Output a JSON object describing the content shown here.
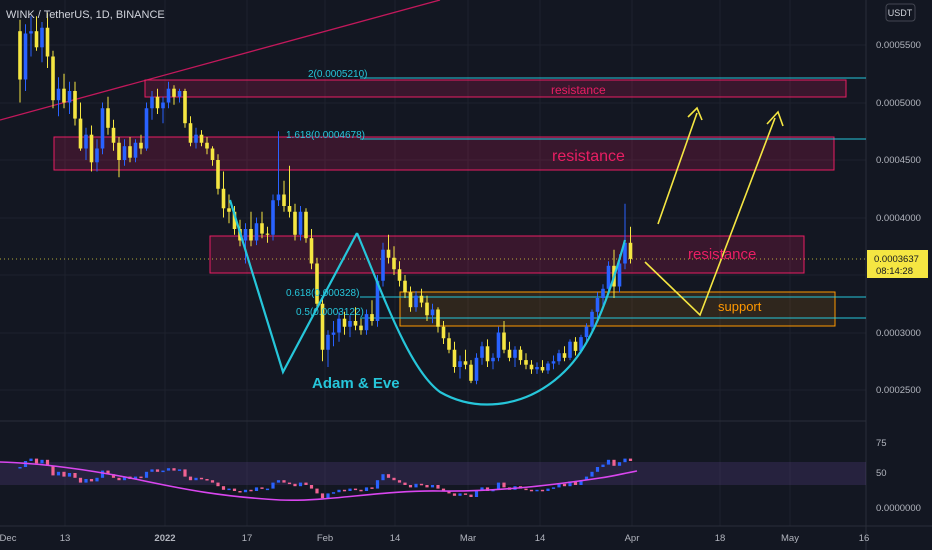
{
  "header": {
    "symbol_line": "WINK / TetherUS, 1D, BINANCE"
  },
  "currency_button": "USDT",
  "price_axis": {
    "ticks": [
      "0.0005500",
      "0.0005000",
      "0.0004500",
      "0.0004000",
      "0.0003000",
      "0.0002500"
    ]
  },
  "last_price": {
    "value": "0.0003637",
    "countdown": "08:14:28"
  },
  "rsi_axis": {
    "ticks": [
      "75",
      "50",
      "0.0000000"
    ]
  },
  "time_axis": {
    "ticks": [
      "Dec",
      "13",
      "2022",
      "17",
      "Feb",
      "14",
      "Mar",
      "14",
      "Apr",
      "18",
      "May",
      "16"
    ]
  },
  "annotations": {
    "fib_2": "2(0.0005210)",
    "fib_1618": "1.618(0.0004678)",
    "fib_0618": "0.618(0.000328)",
    "fib_05": "0.5(0.0003122)",
    "resistance_top": "resistance",
    "resistance_mid": "resistance",
    "resistance_low": "resistance",
    "support": "support",
    "pattern": "Adam & Eve"
  },
  "colors": {
    "background": "#131722",
    "bull": "#2962ff",
    "bear": "#f5e642",
    "pink_zone": "#e91e63",
    "orange_zone": "#ff9800",
    "cyan": "#26c6da",
    "yellow_arrow": "#f5e642",
    "rsi_line": "#d946ef",
    "text": "#b2b5be"
  },
  "chart_data": [
    {
      "type": "candlestick",
      "title": "WINK / TetherUS, 1D, BINANCE",
      "y_scale": "linear",
      "ylim": [
        0.00023,
        0.00058
      ],
      "last_price": 0.0003637,
      "ohlc": [
        [
          0.000562,
          0.000572,
          0.0005,
          0.00052
        ],
        [
          0.00052,
          0.000568,
          0.00051,
          0.00056
        ],
        [
          0.00056,
          0.000575,
          0.00054,
          0.000562
        ],
        [
          0.000562,
          0.000575,
          0.000545,
          0.000548
        ],
        [
          0.000548,
          0.00057,
          0.000535,
          0.000565
        ],
        [
          0.000565,
          0.000578,
          0.00053,
          0.00054
        ],
        [
          0.00054,
          0.000545,
          0.000495,
          0.000502
        ],
        [
          0.000502,
          0.000522,
          0.000488,
          0.000512
        ],
        [
          0.000512,
          0.000525,
          0.000495,
          0.0005
        ],
        [
          0.0005,
          0.000518,
          0.00049,
          0.00051
        ],
        [
          0.00051,
          0.000518,
          0.00048,
          0.000486
        ],
        [
          0.000486,
          0.0005,
          0.000458,
          0.00046
        ],
        [
          0.00046,
          0.000478,
          0.00045,
          0.000472
        ],
        [
          0.000472,
          0.00048,
          0.00044,
          0.000448
        ],
        [
          0.000448,
          0.000468,
          0.00044,
          0.00046
        ],
        [
          0.00046,
          0.0005,
          0.000455,
          0.000495
        ],
        [
          0.000495,
          0.000505,
          0.000472,
          0.000478
        ],
        [
          0.000478,
          0.000485,
          0.000458,
          0.000465
        ],
        [
          0.000465,
          0.00047,
          0.000435,
          0.00045
        ],
        [
          0.00045,
          0.000468,
          0.000445,
          0.000462
        ],
        [
          0.000462,
          0.00047,
          0.000448,
          0.000452
        ],
        [
          0.000452,
          0.000468,
          0.000448,
          0.000465
        ],
        [
          0.000465,
          0.000472,
          0.000455,
          0.00046
        ],
        [
          0.00046,
          0.0005,
          0.000458,
          0.000495
        ],
        [
          0.000495,
          0.00051,
          0.000485,
          0.000505
        ],
        [
          0.000505,
          0.000512,
          0.00049,
          0.000495
        ],
        [
          0.000495,
          0.000505,
          0.000482,
          0.0005
        ],
        [
          0.0005,
          0.000518,
          0.000495,
          0.000512
        ],
        [
          0.000512,
          0.000515,
          0.000498,
          0.000505
        ],
        [
          0.000505,
          0.000512,
          0.0005,
          0.00051
        ],
        [
          0.00051,
          0.000512,
          0.000478,
          0.000482
        ],
        [
          0.000482,
          0.000488,
          0.000462,
          0.000465
        ],
        [
          0.000465,
          0.000478,
          0.00046,
          0.000472
        ],
        [
          0.000472,
          0.000476,
          0.000462,
          0.000465
        ],
        [
          0.000465,
          0.00047,
          0.000455,
          0.00046
        ],
        [
          0.00046,
          0.000462,
          0.000445,
          0.00045
        ],
        [
          0.00045,
          0.000455,
          0.00042,
          0.000425
        ],
        [
          0.000425,
          0.00044,
          0.0004,
          0.000408
        ],
        [
          0.000408,
          0.00042,
          0.000395,
          0.000405
        ],
        [
          0.000405,
          0.00041,
          0.000385,
          0.00039
        ],
        [
          0.00039,
          0.000398,
          0.000375,
          0.00038
        ],
        [
          0.00038,
          0.000395,
          0.00036,
          0.00039
        ],
        [
          0.00039,
          0.000405,
          0.000375,
          0.00038
        ],
        [
          0.00038,
          0.0004,
          0.000376,
          0.000395
        ],
        [
          0.000395,
          0.000405,
          0.000382,
          0.000386
        ],
        [
          0.000386,
          0.000392,
          0.000378,
          0.000385
        ],
        [
          0.000385,
          0.00042,
          0.00038,
          0.000415
        ],
        [
          0.000415,
          0.000475,
          0.00041,
          0.00042
        ],
        [
          0.00042,
          0.000432,
          0.000405,
          0.00041
        ],
        [
          0.00041,
          0.000445,
          0.0004,
          0.000405
        ],
        [
          0.000405,
          0.000412,
          0.00038,
          0.000385
        ],
        [
          0.000385,
          0.00041,
          0.00038,
          0.000405
        ],
        [
          0.000405,
          0.000408,
          0.000378,
          0.000382
        ],
        [
          0.000382,
          0.00039,
          0.000355,
          0.00036
        ],
        [
          0.00036,
          0.000365,
          0.00032,
          0.000325
        ],
        [
          0.000325,
          0.00033,
          0.000275,
          0.000285
        ],
        [
          0.000285,
          0.000302,
          0.00027,
          0.000298
        ],
        [
          0.000298,
          0.00031,
          0.000288,
          0.0003
        ],
        [
          0.0003,
          0.000318,
          0.000292,
          0.000312
        ],
        [
          0.000312,
          0.000318,
          0.000298,
          0.000305
        ],
        [
          0.000305,
          0.000315,
          0.000296,
          0.00031
        ],
        [
          0.00031,
          0.000322,
          0.000302,
          0.000306
        ],
        [
          0.000306,
          0.000312,
          0.000298,
          0.000302
        ],
        [
          0.000302,
          0.00032,
          0.000298,
          0.000316
        ],
        [
          0.000316,
          0.000328,
          0.000306,
          0.00031
        ],
        [
          0.00031,
          0.00035,
          0.000305,
          0.000345
        ],
        [
          0.000345,
          0.000378,
          0.00034,
          0.000372
        ],
        [
          0.000372,
          0.000385,
          0.00036,
          0.000365
        ],
        [
          0.000365,
          0.000375,
          0.00035,
          0.000355
        ],
        [
          0.000355,
          0.000362,
          0.00034,
          0.000345
        ],
        [
          0.000345,
          0.00035,
          0.00033,
          0.000335
        ],
        [
          0.000335,
          0.00034,
          0.000318,
          0.000322
        ],
        [
          0.000322,
          0.000336,
          0.000318,
          0.000332
        ],
        [
          0.000332,
          0.000338,
          0.000322,
          0.000326
        ],
        [
          0.000326,
          0.000332,
          0.00031,
          0.000315
        ],
        [
          0.000315,
          0.000325,
          0.000308,
          0.00032
        ],
        [
          0.00032,
          0.000322,
          0.0003,
          0.000305
        ],
        [
          0.000305,
          0.00031,
          0.00029,
          0.000295
        ],
        [
          0.000295,
          0.0003,
          0.000282,
          0.000285
        ],
        [
          0.000285,
          0.000292,
          0.000265,
          0.00027
        ],
        [
          0.00027,
          0.00028,
          0.00026,
          0.000275
        ],
        [
          0.000275,
          0.000285,
          0.000268,
          0.000272
        ],
        [
          0.000272,
          0.000276,
          0.000256,
          0.000258
        ],
        [
          0.000258,
          0.000282,
          0.000255,
          0.000278
        ],
        [
          0.000278,
          0.000292,
          0.000272,
          0.000288
        ],
        [
          0.000288,
          0.000294,
          0.00027,
          0.000275
        ],
        [
          0.000275,
          0.000282,
          0.000268,
          0.000278
        ],
        [
          0.000278,
          0.000305,
          0.000275,
          0.0003
        ],
        [
          0.0003,
          0.00031,
          0.000282,
          0.000285
        ],
        [
          0.000285,
          0.000292,
          0.000275,
          0.000278
        ],
        [
          0.000278,
          0.000288,
          0.00027,
          0.000285
        ],
        [
          0.000285,
          0.000288,
          0.000272,
          0.000276
        ],
        [
          0.000276,
          0.000282,
          0.000268,
          0.000272
        ],
        [
          0.000272,
          0.000276,
          0.000264,
          0.000268
        ],
        [
          0.000268,
          0.000274,
          0.000264,
          0.00027
        ],
        [
          0.00027,
          0.000276,
          0.000265,
          0.000267
        ],
        [
          0.000267,
          0.000275,
          0.000264,
          0.000273
        ],
        [
          0.000273,
          0.00028,
          0.000268,
          0.000275
        ],
        [
          0.000275,
          0.000285,
          0.000272,
          0.000282
        ],
        [
          0.000282,
          0.000288,
          0.000275,
          0.000278
        ],
        [
          0.000278,
          0.000294,
          0.000276,
          0.000292
        ],
        [
          0.000292,
          0.000296,
          0.00028,
          0.000284
        ],
        [
          0.000284,
          0.000298,
          0.000282,
          0.000296
        ],
        [
          0.000296,
          0.000308,
          0.000292,
          0.000305
        ],
        [
          0.000305,
          0.00032,
          0.0003,
          0.000318
        ],
        [
          0.000318,
          0.000335,
          0.000312,
          0.00033
        ],
        [
          0.00033,
          0.000342,
          0.000322,
          0.000338
        ],
        [
          0.000338,
          0.000362,
          0.000335,
          0.000358
        ],
        [
          0.000358,
          0.000372,
          0.00033,
          0.00034
        ],
        [
          0.00034,
          0.000368,
          0.000335,
          0.00036
        ],
        [
          0.00036,
          0.000412,
          0.000355,
          0.000378
        ],
        [
          0.000378,
          0.000392,
          0.00036,
          0.000364
        ]
      ]
    },
    {
      "type": "line",
      "name": "RSI",
      "ylim": [
        0,
        100
      ],
      "band": [
        30,
        70
      ],
      "values": [
        55,
        60,
        62,
        58,
        61,
        56,
        48,
        51,
        47,
        50,
        46,
        42,
        45,
        43,
        46,
        52,
        49,
        46,
        44,
        47,
        45,
        47,
        46,
        51,
        53,
        51,
        52,
        54,
        52,
        53,
        47,
        44,
        46,
        45,
        44,
        42,
        39,
        36,
        37,
        35,
        34,
        36,
        35,
        38,
        37,
        37,
        42,
        44,
        42,
        41,
        39,
        42,
        40,
        37,
        33,
        29,
        33,
        34,
        36,
        35,
        37,
        36,
        35,
        38,
        37,
        44,
        49,
        46,
        44,
        42,
        40,
        38,
        41,
        40,
        38,
        40,
        37,
        35,
        33,
        31,
        33,
        32,
        30,
        35,
        38,
        35,
        36,
        42,
        38,
        36,
        39,
        37,
        36,
        35,
        36,
        35,
        37,
        38,
        41,
        39,
        43,
        40,
        44,
        47,
        51,
        55,
        57,
        61,
        56,
        59,
        62,
        60
      ]
    }
  ]
}
